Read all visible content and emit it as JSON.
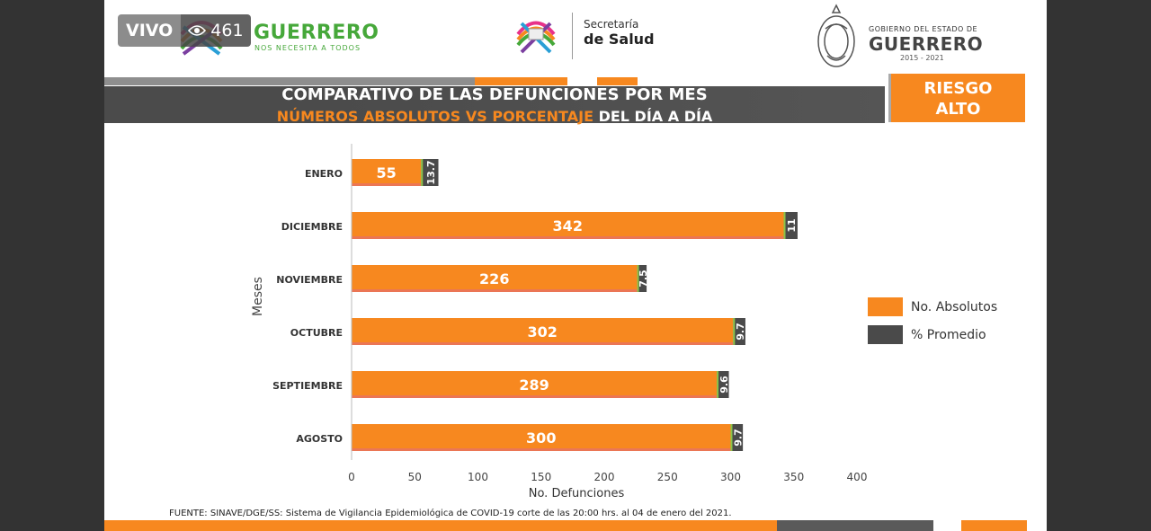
{
  "live": {
    "label": "VIVO",
    "viewers": "461"
  },
  "header": {
    "brand_name": "GUERRERO",
    "brand_tagline": "NOS NECESITA A TODOS",
    "secretaria_top": "Secretaría",
    "secretaria_bottom": "de Salud",
    "gov_top": "GOBIERNO DEL ESTADO DE",
    "gov_name": "GUERRERO",
    "gov_years": "2015 - 2021"
  },
  "title": {
    "line1": "COMPARATIVO DE LAS DEFUNCIONES POR MES",
    "line2_highlight": "NÚMEROS ABSOLUTOS VS PORCENTAJE",
    "line2_rest": " DEL DÍA A DÍA"
  },
  "risk": {
    "line1": "RIESGO",
    "line2": "ALTO"
  },
  "colors": {
    "orange": "#f7881f",
    "gray": "#4a4a4a",
    "green": "#46a83a"
  },
  "chart_data": {
    "type": "bar",
    "orientation": "horizontal",
    "stacked": true,
    "categories": [
      "ENERO",
      "DICIEMBRE",
      "NOVIEMBRE",
      "OCTUBRE",
      "SEPTIEMBRE",
      "AGOSTO"
    ],
    "series": [
      {
        "name": "No. Absolutos",
        "values": [
          55,
          342,
          226,
          302,
          289,
          300
        ],
        "color": "#f7881f"
      },
      {
        "name": "% Promedio",
        "values": [
          13.7,
          11,
          7.5,
          9.7,
          9.6,
          9.7
        ],
        "color": "#4a4a4a"
      }
    ],
    "xlabel": "No. Defunciones",
    "ylabel": "Meses",
    "xlim": [
      0,
      400
    ],
    "xticks": [
      0,
      50,
      100,
      150,
      200,
      250,
      300,
      350,
      400
    ],
    "grid": false,
    "legend": "right"
  },
  "source": "FUENTE: SINAVE/DGE/SS: Sistema de Vigilancia Epidemiológica de COVID-19 corte de las 20:00 hrs. al 04 de enero del 2021."
}
